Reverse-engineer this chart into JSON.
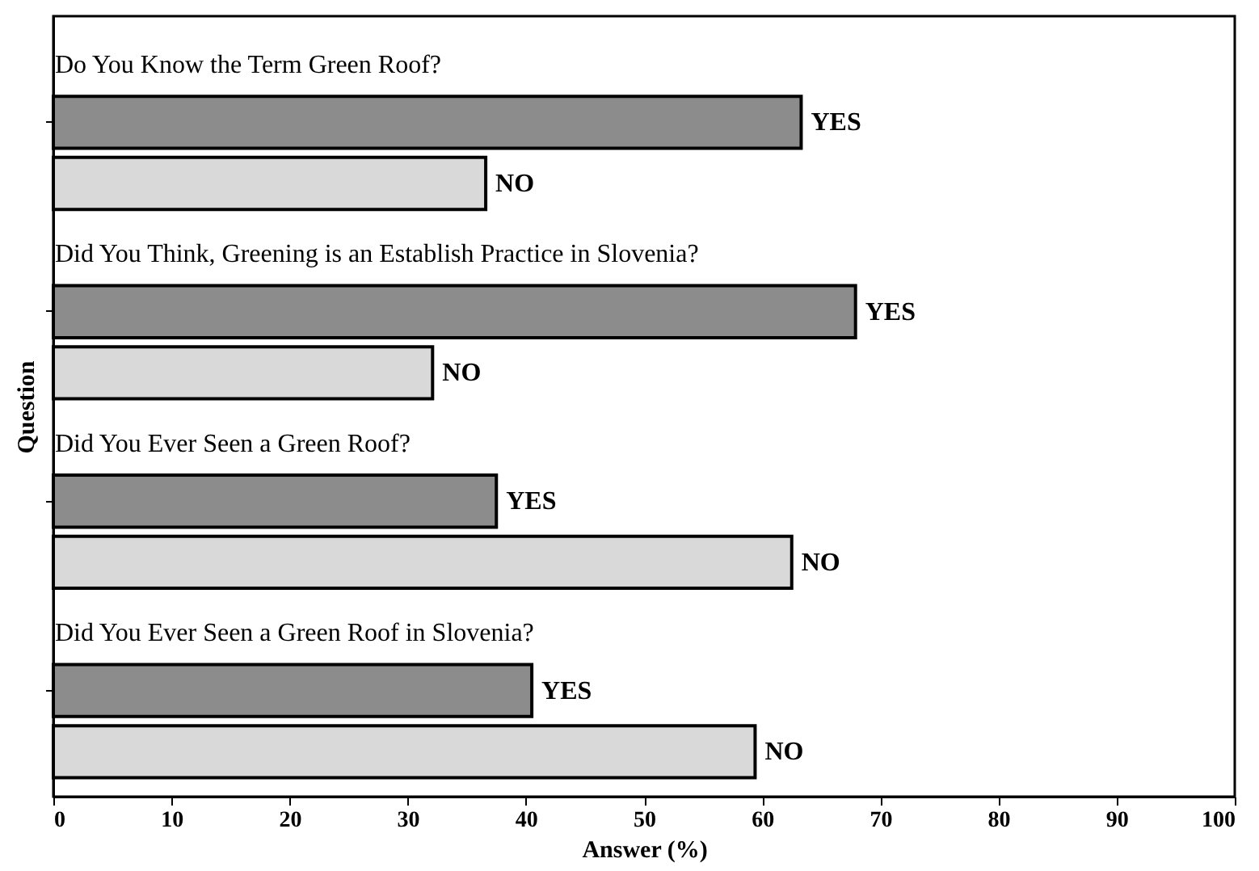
{
  "chart_data": {
    "type": "bar",
    "orientation": "horizontal",
    "categories": [
      "Do You Know the Term Green Roof?",
      "Did You Think, Greening is an Establish Practice in Slovenia?",
      "Did You Ever Seen a Green Roof?",
      "Did You Ever Seen a Green Roof in Slovenia?"
    ],
    "series": [
      {
        "name": "YES",
        "color": "#8c8c8c",
        "values": [
          63.3,
          67.9,
          37.5,
          40.5
        ]
      },
      {
        "name": "NO",
        "color": "#d9d9d9",
        "values": [
          36.6,
          32.1,
          62.5,
          59.4
        ]
      }
    ],
    "xlabel": "Answer (%)",
    "ylabel": "Question",
    "xlim": [
      0,
      100
    ],
    "xticks": [
      0,
      10,
      20,
      30,
      40,
      50,
      60,
      70,
      80,
      90,
      100
    ],
    "grid": false
  }
}
